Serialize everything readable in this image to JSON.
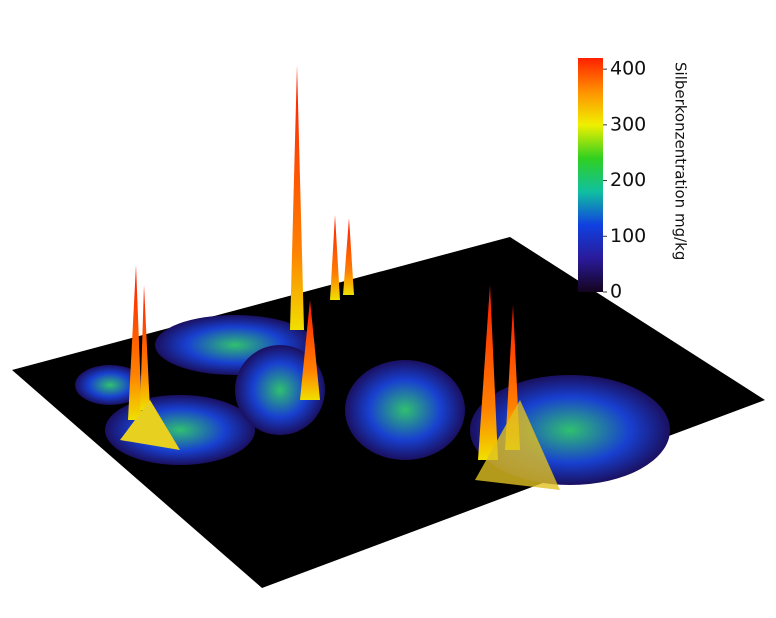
{
  "chart_data": {
    "type": "surface",
    "colorbar": {
      "label": "Silberkonzentration mg/kg",
      "clim": [
        0,
        420
      ],
      "ticks": [
        0,
        100,
        200,
        300,
        400
      ],
      "colors": [
        "#14041e",
        "#2a1a9a",
        "#1040e0",
        "#10c0a0",
        "#30d020",
        "#f0f000",
        "#ff9000",
        "#ff2000"
      ]
    }
  }
}
